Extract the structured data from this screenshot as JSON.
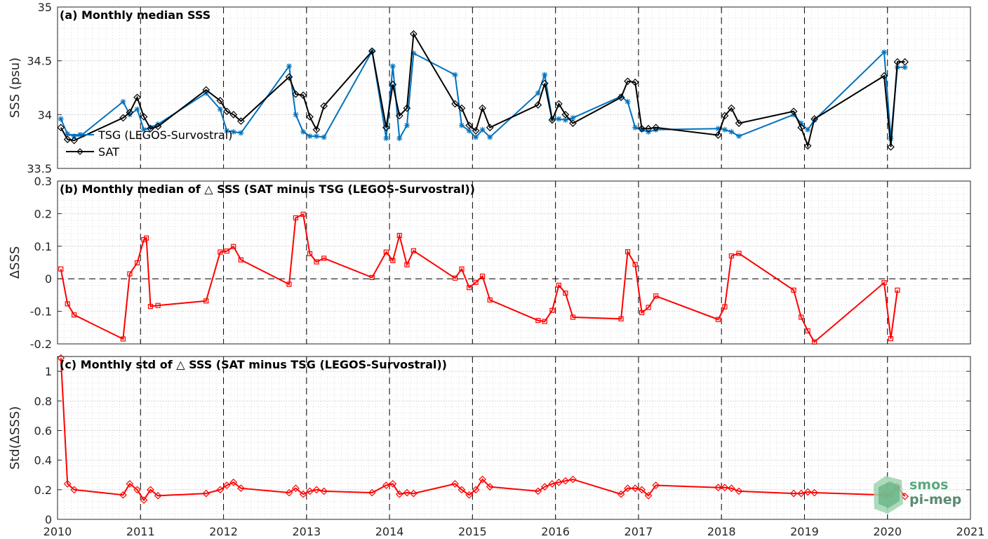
{
  "chart_data": [
    {
      "type": "line",
      "title": "(a) Monthly median SSS",
      "xlabel": "",
      "ylabel": "SSS (psu)",
      "xlim": [
        2010,
        2021
      ],
      "ylim": [
        33.5,
        35
      ],
      "yticks": [
        33.5,
        34,
        34.5,
        35
      ],
      "ytick_labels": [
        "33.5",
        "34",
        "34.5",
        "35"
      ],
      "xticks": [
        2010,
        2011,
        2012,
        2013,
        2014,
        2015,
        2016,
        2017,
        2018,
        2019,
        2020,
        2021
      ],
      "xtick_labels": [
        "2010",
        "2011",
        "2012",
        "2013",
        "2014",
        "2015",
        "2016",
        "2017",
        "2018",
        "2019",
        "2020",
        "2021"
      ],
      "grid": true,
      "legend_position": "bottom-left",
      "series": [
        {
          "name": "TSG (LEGOS-Survostral)",
          "color": "#0072bd",
          "marker": "asterisk",
          "x": [
            2010.04,
            2010.12,
            2010.2,
            2010.29,
            2010.79,
            2010.87,
            2010.96,
            2011.04,
            2011.12,
            2011.21,
            2011.79,
            2011.96,
            2012.04,
            2012.12,
            2012.21,
            2012.79,
            2012.87,
            2012.96,
            2013.04,
            2013.12,
            2013.21,
            2013.79,
            2013.96,
            2014.04,
            2014.12,
            2014.21,
            2014.29,
            2014.79,
            2014.87,
            2014.96,
            2015.04,
            2015.12,
            2015.21,
            2015.79,
            2015.87,
            2015.96,
            2016.04,
            2016.12,
            2016.21,
            2016.79,
            2016.87,
            2016.96,
            2017.04,
            2017.12,
            2017.21,
            2017.96,
            2018.04,
            2018.12,
            2018.21,
            2018.87,
            2018.96,
            2019.04,
            2019.12,
            2019.96,
            2020.04,
            2020.12,
            2020.21
          ],
          "y": [
            33.96,
            33.82,
            33.8,
            33.81,
            34.12,
            34.0,
            34.05,
            33.86,
            33.88,
            33.91,
            34.2,
            34.05,
            33.85,
            33.84,
            33.83,
            34.45,
            34.0,
            33.84,
            33.8,
            33.8,
            33.79,
            34.59,
            33.78,
            34.45,
            33.78,
            33.9,
            34.57,
            34.37,
            33.9,
            33.85,
            33.79,
            33.86,
            33.79,
            34.2,
            34.37,
            33.96,
            33.96,
            33.95,
            33.97,
            34.17,
            34.12,
            33.88,
            33.86,
            33.84,
            33.86,
            33.87,
            33.86,
            33.84,
            33.8,
            34.0,
            33.92,
            33.86,
            33.95,
            34.58,
            33.78,
            34.44,
            34.44
          ]
        },
        {
          "name": "SAT",
          "color": "#000000",
          "marker": "diamond",
          "x": [
            2010.04,
            2010.12,
            2010.2,
            2010.79,
            2010.87,
            2010.96,
            2011.04,
            2011.12,
            2011.21,
            2011.79,
            2011.96,
            2012.04,
            2012.12,
            2012.21,
            2012.79,
            2012.87,
            2012.96,
            2013.04,
            2013.12,
            2013.21,
            2013.79,
            2013.96,
            2014.04,
            2014.12,
            2014.21,
            2014.29,
            2014.79,
            2014.87,
            2014.96,
            2015.04,
            2015.12,
            2015.21,
            2015.79,
            2015.87,
            2015.96,
            2016.04,
            2016.12,
            2016.21,
            2016.79,
            2016.87,
            2016.96,
            2017.04,
            2017.12,
            2017.21,
            2017.96,
            2018.04,
            2018.12,
            2018.21,
            2018.87,
            2018.96,
            2019.04,
            2019.12,
            2019.96,
            2020.04,
            2020.12,
            2020.21
          ],
          "y": [
            33.88,
            33.77,
            33.76,
            33.97,
            34.02,
            34.16,
            33.98,
            33.87,
            33.89,
            34.23,
            34.13,
            34.03,
            34.0,
            33.94,
            34.35,
            34.19,
            34.18,
            33.98,
            33.86,
            34.08,
            34.59,
            33.88,
            34.28,
            33.99,
            34.06,
            34.75,
            34.1,
            34.06,
            33.9,
            33.85,
            34.06,
            33.88,
            34.09,
            34.29,
            33.95,
            34.1,
            34.0,
            33.92,
            34.16,
            34.31,
            34.3,
            33.87,
            33.87,
            33.88,
            33.81,
            33.99,
            34.06,
            33.92,
            34.03,
            33.88,
            33.71,
            33.96,
            34.36,
            33.7,
            34.49,
            34.49
          ]
        }
      ]
    },
    {
      "type": "line",
      "title": "(b) Monthly median of △ SSS (SAT minus TSG (LEGOS-Survostral))",
      "xlabel": "",
      "ylabel": "ΔSSS",
      "xlim": [
        2010,
        2021
      ],
      "ylim": [
        -0.2,
        0.3
      ],
      "yticks": [
        -0.2,
        -0.1,
        0,
        0.1,
        0.2,
        0.3
      ],
      "ytick_labels": [
        "-0.2",
        "-0.1",
        "0",
        "0.1",
        "0.2",
        "0.3"
      ],
      "grid": true,
      "zero_line": true,
      "series": [
        {
          "color": "#ff0000",
          "marker": "square",
          "x": [
            2010.04,
            2010.12,
            2010.2,
            2010.79,
            2010.87,
            2010.96,
            2011.04,
            2011.07,
            2011.12,
            2011.21,
            2011.79,
            2011.96,
            2012.04,
            2012.12,
            2012.21,
            2012.79,
            2012.87,
            2012.96,
            2013.04,
            2013.12,
            2013.21,
            2013.79,
            2013.96,
            2014.04,
            2014.12,
            2014.21,
            2014.29,
            2014.79,
            2014.87,
            2014.96,
            2015.04,
            2015.12,
            2015.21,
            2015.79,
            2015.87,
            2015.96,
            2016.04,
            2016.12,
            2016.21,
            2016.79,
            2016.87,
            2016.96,
            2017.04,
            2017.12,
            2017.21,
            2017.96,
            2018.04,
            2018.12,
            2018.21,
            2018.87,
            2018.96,
            2019.04,
            2019.12,
            2019.96,
            2020.04,
            2020.12
          ],
          "y": [
            0.03,
            -0.077,
            -0.111,
            -0.185,
            0.015,
            0.049,
            0.12,
            0.125,
            -0.085,
            -0.082,
            -0.068,
            0.082,
            0.085,
            0.099,
            0.058,
            -0.017,
            0.187,
            0.198,
            0.077,
            0.052,
            0.063,
            0.004,
            0.082,
            0.056,
            0.133,
            0.043,
            0.086,
            0.002,
            0.03,
            -0.027,
            -0.011,
            0.008,
            -0.065,
            -0.128,
            -0.131,
            -0.097,
            -0.02,
            -0.044,
            -0.118,
            -0.123,
            0.083,
            0.044,
            -0.104,
            -0.088,
            -0.053,
            -0.125,
            -0.086,
            0.07,
            0.078,
            -0.035,
            -0.118,
            -0.16,
            -0.194,
            -0.012,
            -0.184,
            -0.035
          ]
        }
      ]
    },
    {
      "type": "line",
      "title": "(c) Monthly std of △ SSS (SAT minus TSG (LEGOS-Survostral))",
      "xlabel": "",
      "ylabel": "Std(ΔSSS)",
      "xlim": [
        2010,
        2021
      ],
      "ylim": [
        0,
        1.1
      ],
      "yticks": [
        0,
        0.2,
        0.4,
        0.6,
        0.8,
        1
      ],
      "ytick_labels": [
        "0",
        "0.2",
        "0.4",
        "0.6",
        "0.8",
        "1"
      ],
      "grid": true,
      "series": [
        {
          "color": "#ff0000",
          "marker": "diamond",
          "x": [
            2010.04,
            2010.12,
            2010.2,
            2010.79,
            2010.87,
            2010.96,
            2011.04,
            2011.12,
            2011.21,
            2011.79,
            2011.96,
            2012.04,
            2012.12,
            2012.21,
            2012.79,
            2012.87,
            2012.96,
            2013.04,
            2013.12,
            2013.21,
            2013.79,
            2013.96,
            2014.04,
            2014.12,
            2014.21,
            2014.29,
            2014.79,
            2014.87,
            2014.96,
            2015.04,
            2015.12,
            2015.21,
            2015.79,
            2015.87,
            2015.96,
            2016.04,
            2016.12,
            2016.21,
            2016.79,
            2016.87,
            2016.96,
            2017.04,
            2017.12,
            2017.21,
            2017.96,
            2018.04,
            2018.12,
            2018.21,
            2018.87,
            2018.96,
            2019.04,
            2019.12,
            2019.96,
            2020.04,
            2020.12,
            2020.21
          ],
          "y": [
            1.09,
            0.24,
            0.2,
            0.165,
            0.24,
            0.2,
            0.13,
            0.2,
            0.16,
            0.175,
            0.2,
            0.23,
            0.25,
            0.21,
            0.18,
            0.21,
            0.17,
            0.19,
            0.2,
            0.19,
            0.18,
            0.23,
            0.24,
            0.17,
            0.18,
            0.175,
            0.24,
            0.2,
            0.165,
            0.2,
            0.27,
            0.22,
            0.19,
            0.22,
            0.24,
            0.25,
            0.26,
            0.27,
            0.17,
            0.21,
            0.21,
            0.2,
            0.16,
            0.23,
            0.215,
            0.215,
            0.21,
            0.19,
            0.175,
            0.175,
            0.185,
            0.18,
            0.165,
            0.165,
            0.22,
            0.155
          ]
        }
      ]
    }
  ],
  "logo": {
    "line1": "smos",
    "line2": "pi-mep"
  }
}
